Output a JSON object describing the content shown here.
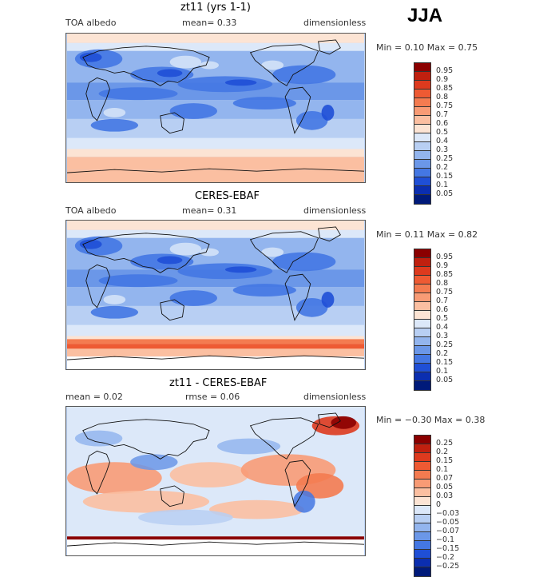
{
  "season": "JJA",
  "panels": [
    {
      "title": "zt11 (yrs 1-1)",
      "left": "TOA albedo",
      "mid": "mean=    0.33",
      "right": "dimensionless",
      "minmax": "Min =    0.10  Max =    0.75",
      "type": "abs"
    },
    {
      "title": "CERES-EBAF",
      "left": "TOA albedo",
      "mid": "mean=    0.31",
      "right": "dimensionless",
      "minmax": "Min =    0.11  Max =    0.82",
      "type": "obs"
    },
    {
      "title": "zt11 - CERES-EBAF",
      "left": "mean =    0.02",
      "mid": "rmse =    0.06",
      "right": "dimensionless",
      "minmax": "Min = −0.30  Max =    0.38",
      "type": "diff"
    }
  ],
  "colorbar_abs": {
    "labels": [
      "0.95",
      "0.9",
      "0.85",
      "0.8",
      "0.75",
      "0.7",
      "0.6",
      "0.5",
      "0.4",
      "0.3",
      "0.25",
      "0.2",
      "0.15",
      "0.1",
      "0.05"
    ],
    "colors": [
      "#8b0000",
      "#c0200f",
      "#dd3a1e",
      "#ee5a33",
      "#f47b50",
      "#f89b75",
      "#fbbfa1",
      "#fce4d4",
      "#dce8f9",
      "#b8cff3",
      "#93b5ee",
      "#6b97e8",
      "#4477e3",
      "#1f4fd6",
      "#0b2eb0",
      "#001a7a"
    ]
  },
  "colorbar_diff": {
    "labels": [
      "0.25",
      "0.2",
      "0.15",
      "0.1",
      "0.07",
      "0.05",
      "0.03",
      "0",
      "−0.03",
      "−0.05",
      "−0.07",
      "−0.1",
      "−0.15",
      "−0.2",
      "−0.25"
    ],
    "colors": [
      "#8b0000",
      "#c0200f",
      "#dd3a1e",
      "#ee5a33",
      "#f47b50",
      "#f89b75",
      "#fbbfa1",
      "#fce4d4",
      "#dce8f9",
      "#b8cff3",
      "#93b5ee",
      "#6b97e8",
      "#4477e3",
      "#1f4fd6",
      "#0b2eb0",
      "#001a7a"
    ]
  }
}
